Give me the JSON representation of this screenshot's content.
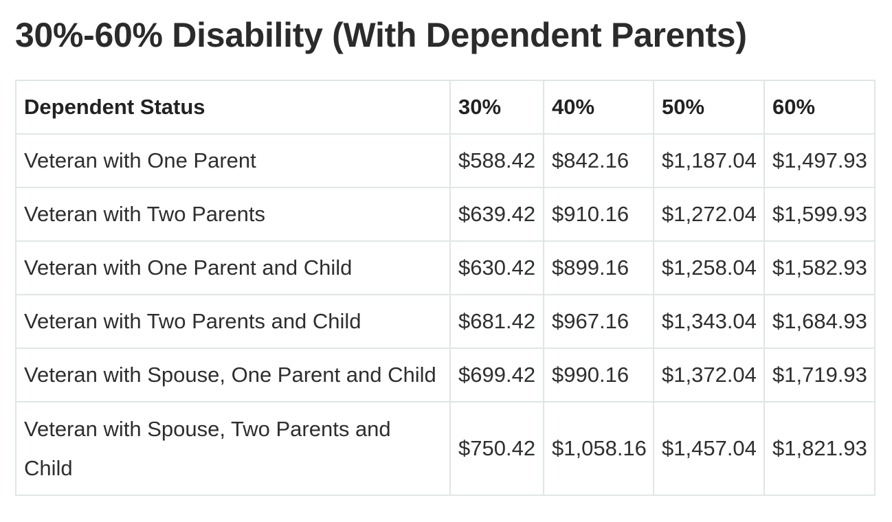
{
  "title": "30%-60% Disability (With Dependent Parents)",
  "table": {
    "headers": [
      "Dependent Status",
      "30%",
      "40%",
      "50%",
      "60%"
    ],
    "rows": [
      {
        "status": "Veteran with One Parent",
        "v30": "$588.42",
        "v40": "$842.16",
        "v50": "$1,187.04",
        "v60": "$1,497.93"
      },
      {
        "status": "Veteran with Two Parents",
        "v30": "$639.42",
        "v40": "$910.16",
        "v50": "$1,272.04",
        "v60": "$1,599.93"
      },
      {
        "status": "Veteran with One Parent and Child",
        "v30": "$630.42",
        "v40": "$899.16",
        "v50": "$1,258.04",
        "v60": "$1,582.93"
      },
      {
        "status": "Veteran with Two Parents and Child",
        "v30": "$681.42",
        "v40": "$967.16",
        "v50": "$1,343.04",
        "v60": "$1,684.93"
      },
      {
        "status": "Veteran with Spouse, One Parent and Child",
        "v30": "$699.42",
        "v40": "$990.16",
        "v50": "$1,372.04",
        "v60": "$1,719.93"
      },
      {
        "status": "Veteran with Spouse, Two Parents and Child",
        "v30": "$750.42",
        "v40": "$1,058.16",
        "v50": "$1,457.04",
        "v60": "$1,821.93"
      }
    ]
  }
}
